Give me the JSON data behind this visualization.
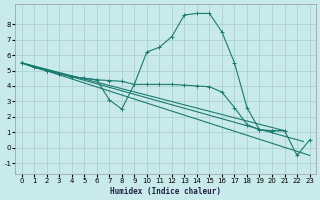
{
  "xlabel": "Humidex (Indice chaleur)",
  "bg_color": "#c8eaea",
  "grid_color": "#b0d0d0",
  "line_color": "#1a7a6e",
  "xlim": [
    -0.5,
    23.5
  ],
  "ylim": [
    -1.7,
    9.3
  ],
  "xticks": [
    0,
    1,
    2,
    3,
    4,
    5,
    6,
    7,
    8,
    9,
    10,
    11,
    12,
    13,
    14,
    15,
    16,
    17,
    18,
    19,
    20,
    21,
    22,
    23
  ],
  "yticks": [
    -1,
    0,
    1,
    2,
    3,
    4,
    5,
    6,
    7,
    8
  ],
  "curve_main": {
    "x": [
      0,
      1,
      2,
      3,
      4,
      5,
      6,
      7,
      8,
      9,
      10,
      11,
      12,
      13,
      14,
      15,
      16,
      17,
      18,
      19,
      20,
      21,
      22,
      23
    ],
    "y": [
      5.5,
      5.2,
      5.0,
      4.8,
      4.6,
      4.5,
      4.4,
      4.35,
      4.3,
      4.1,
      6.2,
      6.5,
      7.2,
      8.6,
      8.7,
      8.7,
      7.5,
      5.5,
      2.6,
      1.15,
      1.1,
      null,
      null,
      null
    ]
  },
  "curve_dip": {
    "x": [
      0,
      1,
      2,
      3,
      4,
      5,
      6,
      7,
      8,
      9,
      10,
      11,
      12,
      13,
      14,
      15,
      16,
      17,
      18,
      19,
      20,
      21
    ],
    "y": [
      5.5,
      5.2,
      5.0,
      4.8,
      4.6,
      4.5,
      4.4,
      3.1,
      2.5,
      4.1,
      4.1,
      4.1,
      4.1,
      4.05,
      4.0,
      3.95,
      3.6,
      2.6,
      1.5,
      1.15,
      1.1,
      1.1
    ]
  },
  "line1": {
    "x": [
      0,
      21
    ],
    "y": [
      5.5,
      1.1
    ]
  },
  "line2": {
    "x": [
      0,
      22.5
    ],
    "y": [
      5.5,
      0.4
    ]
  },
  "line3": {
    "x": [
      0,
      23
    ],
    "y": [
      5.5,
      -0.5
    ]
  },
  "curve_end": {
    "x": [
      20,
      21,
      22,
      23
    ],
    "y": [
      1.1,
      1.1,
      -0.5,
      0.5
    ]
  }
}
